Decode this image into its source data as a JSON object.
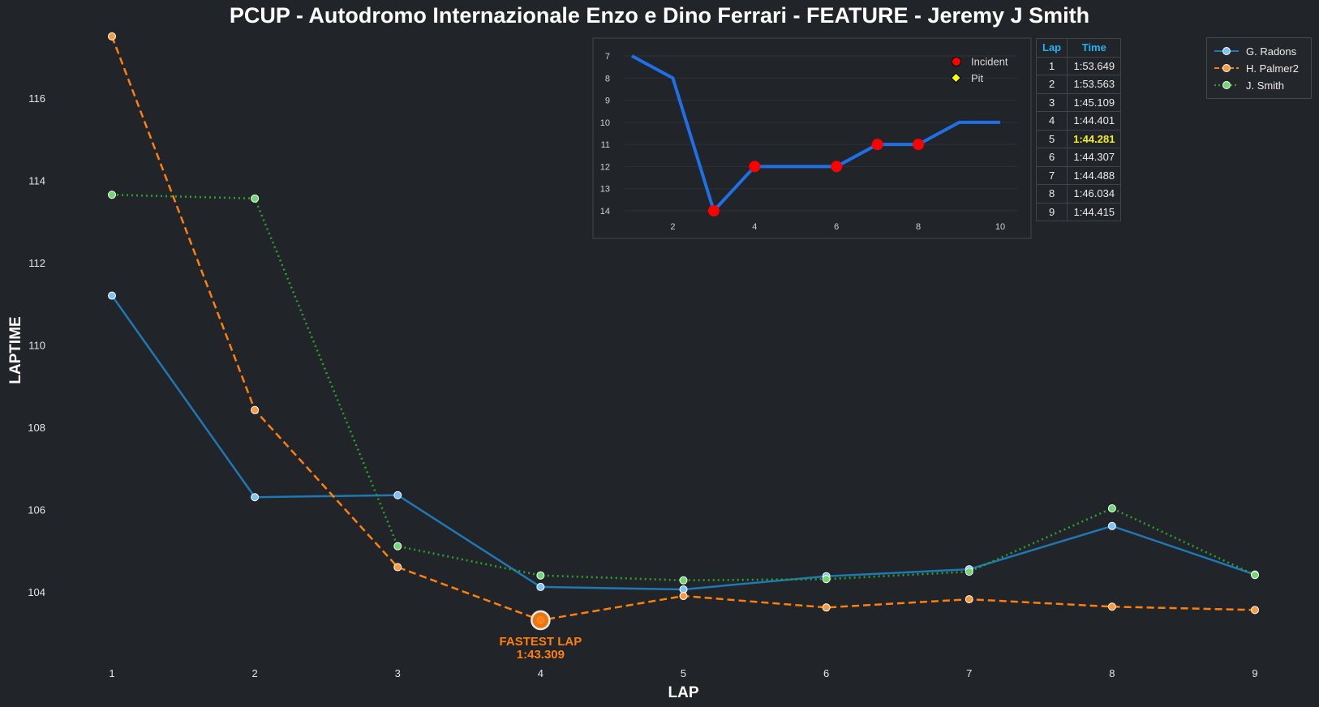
{
  "chart_data": [
    {
      "type": "line",
      "title": "PCUP - Autodromo Internazionale Enzo e Dino Ferrari - FEATURE - Jeremy J Smith",
      "xlabel": "LAP",
      "ylabel": "LAPTIME",
      "x": [
        1,
        2,
        3,
        4,
        5,
        6,
        7,
        8,
        9
      ],
      "xlim": [
        0.3,
        9.8
      ],
      "ylim": [
        102.3,
        117.5
      ],
      "yticks": [
        104,
        106,
        108,
        110,
        112,
        114,
        116
      ],
      "grid": false,
      "legend_position": "top-right",
      "series": [
        {
          "name": "G. Radons",
          "color": "#1f77b4",
          "marker_fill": "#7fc2f5",
          "style": "solid",
          "values": [
            111.2,
            106.3,
            106.35,
            104.12,
            104.06,
            104.38,
            104.55,
            105.6,
            104.42
          ]
        },
        {
          "name": "H. Palmer2",
          "color": "#ff7f0e",
          "marker_fill": "#ff9a3c",
          "style": "dashed",
          "values": [
            117.5,
            108.42,
            104.6,
            103.31,
            103.9,
            103.62,
            103.82,
            103.64,
            103.56
          ]
        },
        {
          "name": "J. Smith",
          "color": "#2ca02c",
          "marker_fill": "#6fd86f",
          "style": "dotted",
          "values": [
            113.65,
            113.56,
            105.11,
            104.4,
            104.28,
            104.31,
            104.49,
            106.03,
            104.41
          ]
        }
      ],
      "annotation": {
        "label": "FASTEST LAP",
        "value": "1:43.309",
        "x": 4,
        "y": 103.31,
        "color": "#ff7f0e"
      }
    },
    {
      "type": "line",
      "x": [
        1,
        2,
        3,
        4,
        5,
        6,
        7,
        8,
        9,
        10
      ],
      "values": [
        7,
        8,
        14,
        12,
        12,
        12,
        11,
        11,
        10,
        10
      ],
      "xticks": [
        2,
        4,
        6,
        8,
        10
      ],
      "yticks": [
        7,
        8,
        9,
        10,
        11,
        12,
        13,
        14
      ],
      "xlim": [
        0.6,
        10.5
      ],
      "ylim": [
        14.6,
        6.6
      ],
      "y_inverted": true,
      "color": "#1f6fe5",
      "incidents": [
        3,
        4,
        6,
        7,
        8
      ],
      "pits": [],
      "legend": [
        {
          "label": "Incident",
          "color": "#ff0000",
          "marker": "circle"
        },
        {
          "label": "Pit",
          "color": "#ffff00",
          "marker": "diamond"
        }
      ]
    }
  ],
  "lap_table": {
    "headers": [
      "Lap",
      "Time"
    ],
    "best_lap": 5,
    "rows": [
      {
        "lap": "1",
        "time": "1:53.649"
      },
      {
        "lap": "2",
        "time": "1:53.563"
      },
      {
        "lap": "3",
        "time": "1:45.109"
      },
      {
        "lap": "4",
        "time": "1:44.401"
      },
      {
        "lap": "5",
        "time": "1:44.281"
      },
      {
        "lap": "6",
        "time": "1:44.307"
      },
      {
        "lap": "7",
        "time": "1:44.488"
      },
      {
        "lap": "8",
        "time": "1:46.034"
      },
      {
        "lap": "9",
        "time": "1:44.415"
      }
    ]
  }
}
